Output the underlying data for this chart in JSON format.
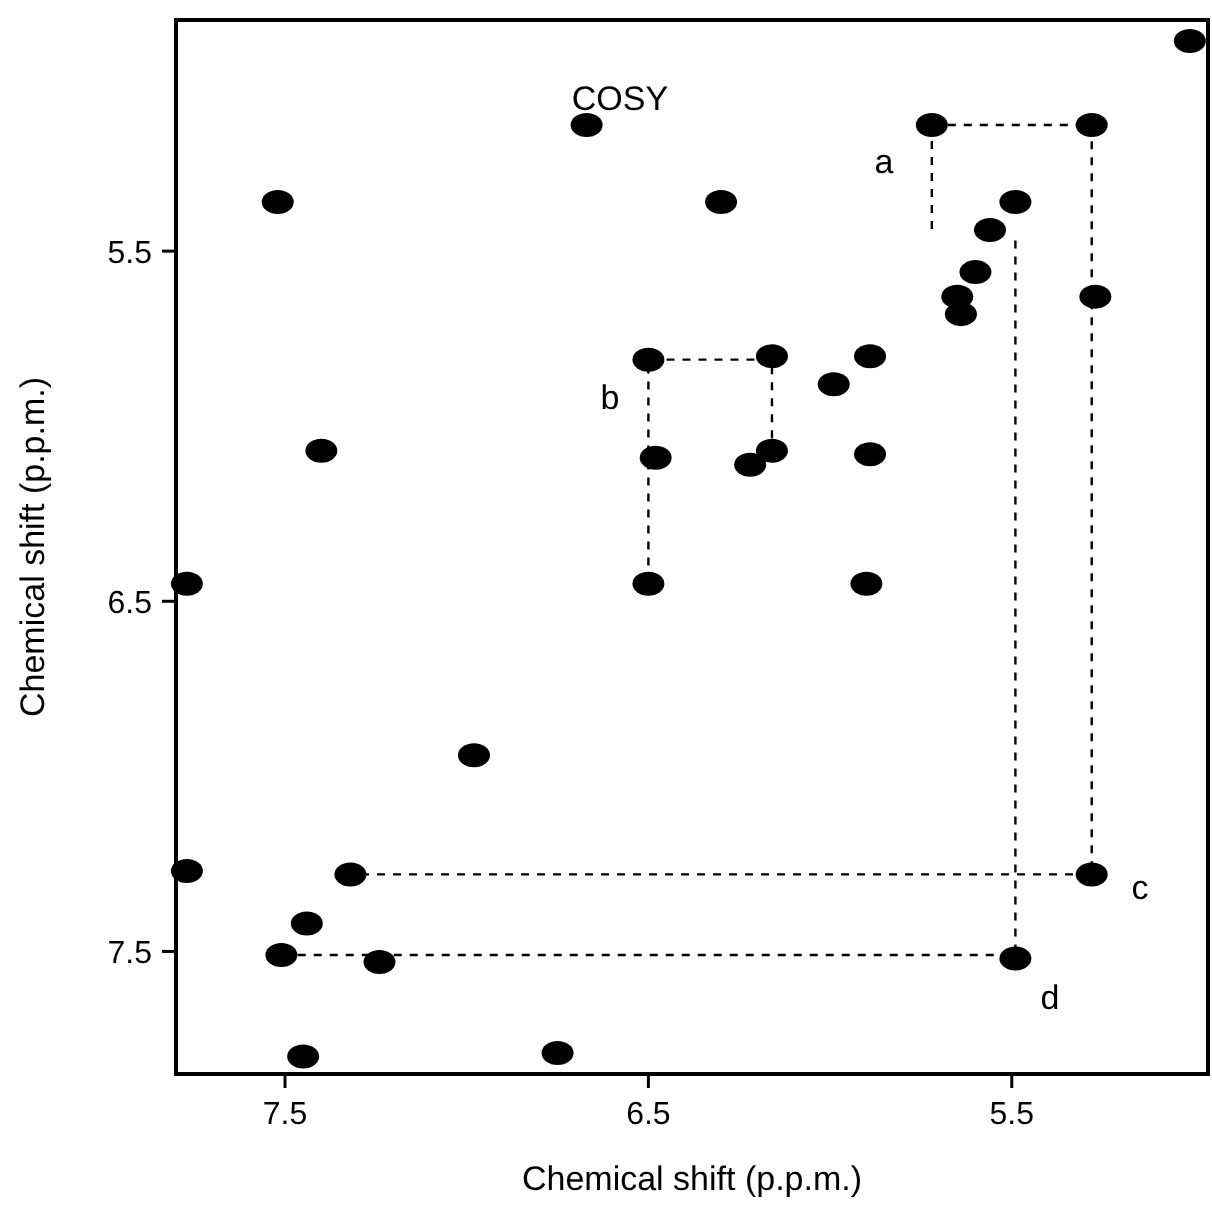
{
  "chart_data": {
    "type": "scatter",
    "title": "COSY",
    "xlabel": "Chemical shift (p.p.m.)",
    "ylabel": "Chemical shift (p.p.m.)",
    "xlim": [
      7.8,
      4.96
    ],
    "ylim": [
      7.85,
      4.84
    ],
    "xticks": [
      7.5,
      6.5,
      5.5
    ],
    "yticks": [
      5.5,
      6.5,
      7.5
    ],
    "grid": false,
    "series": [
      {
        "color": "#000000",
        "marker": "circle",
        "x": [
          5.01,
          6.67,
          5.72,
          5.28,
          7.52,
          6.3,
          5.49,
          5.56,
          5.6,
          5.65,
          5.64,
          5.27,
          6.5,
          6.16,
          5.89,
          5.99,
          6.16,
          6.22,
          5.89,
          7.4,
          6.48,
          7.77,
          6.5,
          5.9,
          6.98,
          7.77,
          7.32,
          7.44,
          5.28,
          7.51,
          7.24,
          5.49,
          7.45,
          6.75
        ],
        "values": [
          4.9,
          5.14,
          5.14,
          5.14,
          5.36,
          5.36,
          5.36,
          5.44,
          5.56,
          5.63,
          5.68,
          5.63,
          5.81,
          5.8,
          5.8,
          5.88,
          6.07,
          6.11,
          6.08,
          6.07,
          6.09,
          6.45,
          6.45,
          6.45,
          6.94,
          7.27,
          7.28,
          7.42,
          7.28,
          7.51,
          7.53,
          7.52,
          7.8,
          7.79
        ]
      },
      {
        "type": "line",
        "color": "#000000",
        "line_style": "dashed",
        "x": [
          5.72,
          5.28,
          5.28,
          7.32
        ],
        "values": [
          5.14,
          5.14,
          7.28,
          7.28
        ]
      },
      {
        "type": "line",
        "color": "#000000",
        "line_style": "dashed",
        "x": [
          5.72,
          5.72
        ],
        "values": [
          5.14,
          5.44
        ]
      },
      {
        "type": "line",
        "color": "#000000",
        "line_style": "dashed",
        "x": [
          5.49,
          5.49,
          7.51
        ],
        "values": [
          5.47,
          7.51,
          7.51
        ]
      },
      {
        "type": "line",
        "color": "#000000",
        "line_style": "dashed",
        "x": [
          6.16,
          6.16,
          6.5,
          6.5
        ],
        "values": [
          6.08,
          5.81,
          5.81,
          6.45
        ]
      }
    ],
    "annotations": [
      "a",
      "b",
      "c",
      "d"
    ]
  }
}
